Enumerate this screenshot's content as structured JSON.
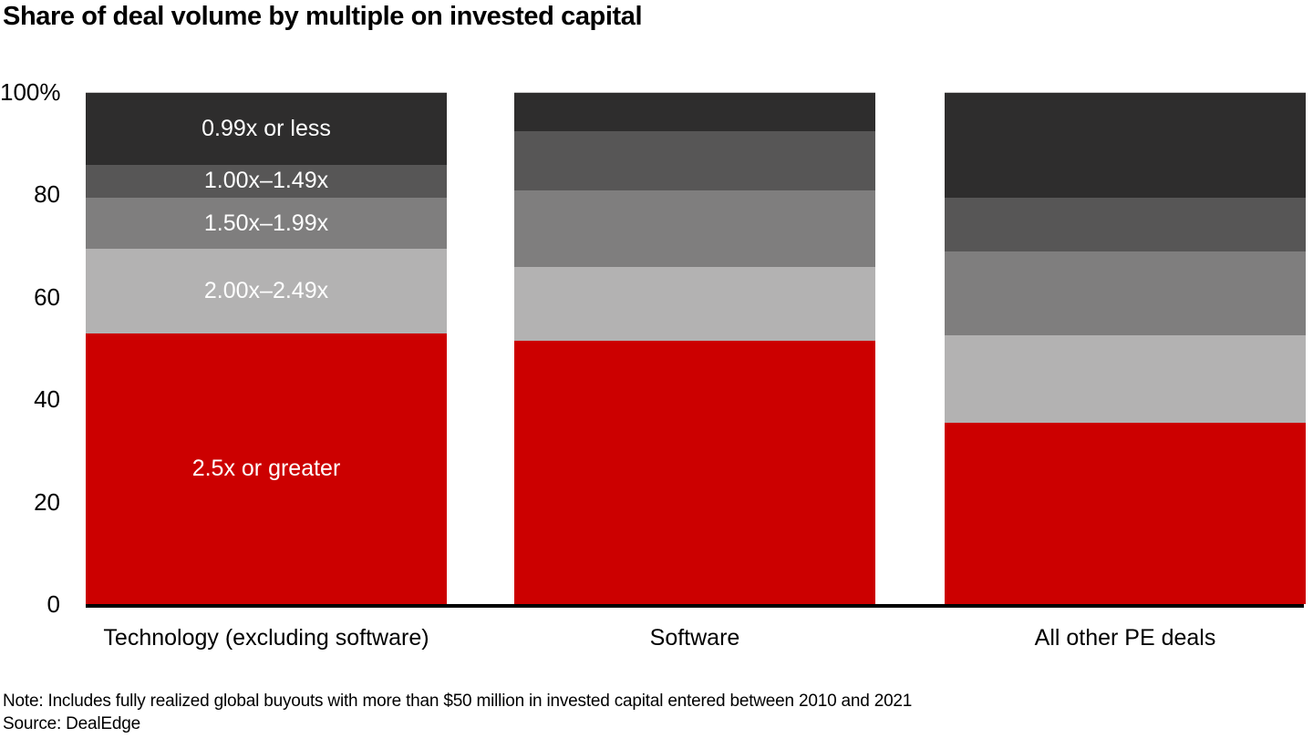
{
  "page": {
    "title": "Share of deal volume by multiple on invested capital",
    "note": "Note: Includes fully realized global buyouts with more than $50 million in invested capital entered between 2010 and 2021",
    "source": "Source: DealEdge"
  },
  "colors": {
    "accent_red": "#cc0000",
    "gray_light": "#b3b2b2",
    "gray_medium": "#7f7e7e",
    "gray_dark": "#575656",
    "gray_darkest": "#2e2d2d",
    "axis": "#000000",
    "segment_label_text": "#ffffff"
  },
  "chart_data": {
    "type": "bar",
    "subtype": "stacked-100-percent",
    "title": "Share of deal volume by multiple on invested capital",
    "categories": [
      "Technology (excluding software)",
      "Software",
      "All other PE deals"
    ],
    "series": [
      {
        "name": "2.5x or greater",
        "color": "#cc0000",
        "values": [
          53,
          51.5,
          35.5
        ]
      },
      {
        "name": "2.00x–2.49x",
        "color": "#b3b2b2",
        "values": [
          16.5,
          14.5,
          17
        ]
      },
      {
        "name": "1.50x–1.99x",
        "color": "#7f7e7e",
        "values": [
          10,
          15,
          16.5
        ]
      },
      {
        "name": "1.00x–1.49x",
        "color": "#575656",
        "values": [
          6.5,
          11.5,
          10.5
        ]
      },
      {
        "name": "0.99x or less",
        "color": "#2e2d2d",
        "values": [
          14,
          7.5,
          20.5
        ]
      }
    ],
    "series_stack_order": "bottom-to-top",
    "value_axis": {
      "min": 0,
      "max": 100,
      "ticks": [
        {
          "label": "100%",
          "value": 100
        },
        {
          "label": "80",
          "value": 80
        },
        {
          "label": "60",
          "value": 60
        },
        {
          "label": "40",
          "value": 40
        },
        {
          "label": "20",
          "value": 20
        },
        {
          "label": "0",
          "value": 0
        }
      ]
    },
    "grid": false,
    "legend_position": "labels-inside-first-bar",
    "xlabel": "",
    "ylabel": ""
  }
}
